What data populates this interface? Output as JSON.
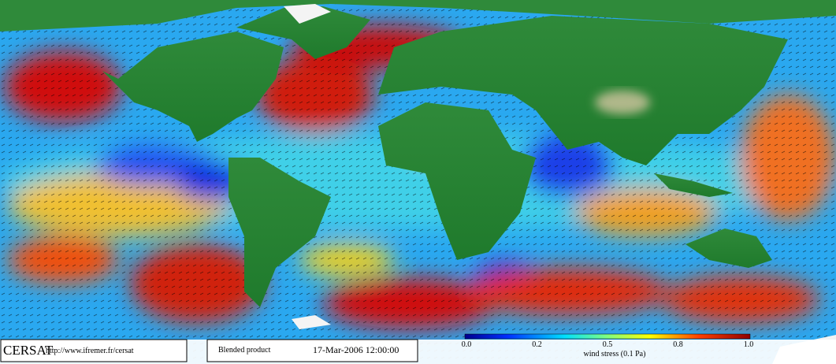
{
  "logo": "CERSAT",
  "url": "http://www.ifremer.fr/cersat",
  "product": "Blended product",
  "timestamp": "17-Mar-2006 12:00:00",
  "colorbar": {
    "ticks": [
      "0.0",
      "0.2",
      "0.5",
      "0.8",
      "1.0"
    ],
    "label": "wind stress (0.1 Pa)"
  }
}
